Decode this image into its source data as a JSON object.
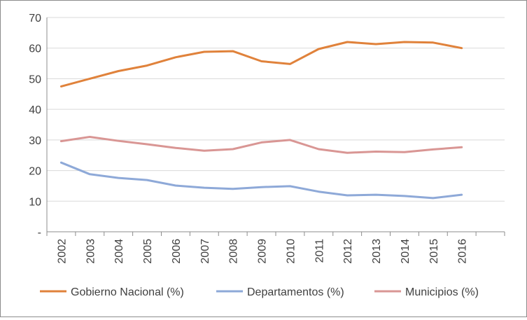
{
  "chart_data": {
    "type": "line",
    "title": "",
    "xlabel": "",
    "ylabel": "",
    "ylim": [
      0,
      70
    ],
    "yticks": [
      {
        "value": 0,
        "label": "-"
      },
      {
        "value": 10,
        "label": "10"
      },
      {
        "value": 20,
        "label": "20"
      },
      {
        "value": 30,
        "label": "30"
      },
      {
        "value": 40,
        "label": "40"
      },
      {
        "value": 50,
        "label": "50"
      },
      {
        "value": 60,
        "label": "60"
      },
      {
        "value": 70,
        "label": "70"
      }
    ],
    "categories": [
      "2002",
      "2003",
      "2004",
      "2005",
      "2006",
      "2007",
      "2008",
      "2009",
      "2010",
      "2011",
      "2012",
      "2013",
      "2014",
      "2015",
      "2016"
    ],
    "grid": true,
    "legend_position": "bottom",
    "series": [
      {
        "name": "Gobierno Nacional (%)",
        "color": "#E0823B",
        "values": [
          47.5,
          50.0,
          52.5,
          54.3,
          57.0,
          58.8,
          59.0,
          55.7,
          54.8,
          59.7,
          62.0,
          61.3,
          62.0,
          61.8,
          60.0
        ]
      },
      {
        "name": "Departamentos (%)",
        "color": "#8EA9D8",
        "values": [
          22.6,
          18.8,
          17.6,
          16.9,
          15.1,
          14.4,
          14.0,
          14.6,
          14.9,
          13.1,
          11.9,
          12.1,
          11.7,
          11.0,
          12.1
        ]
      },
      {
        "name": "Municipios (%)",
        "color": "#D99694",
        "values": [
          29.6,
          31.0,
          29.7,
          28.6,
          27.4,
          26.5,
          27.0,
          29.2,
          30.0,
          27.0,
          25.8,
          26.2,
          26.0,
          26.9,
          27.6
        ]
      }
    ]
  }
}
